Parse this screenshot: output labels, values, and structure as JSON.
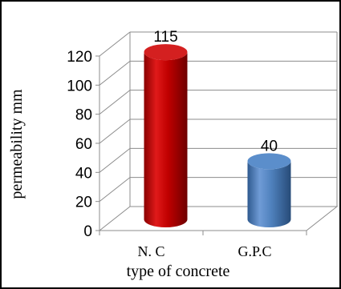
{
  "chart_data": {
    "type": "bar",
    "style": "3d-cylinder",
    "categories": [
      "N. C",
      "G.P.C"
    ],
    "values": [
      115,
      40
    ],
    "data_labels": [
      "115",
      "40"
    ],
    "colors": [
      "#c00000",
      "#4f81bd"
    ],
    "xlabel": "type of concrete",
    "ylabel": "permeability mm",
    "ylim": [
      0,
      120
    ],
    "yticks": [
      0,
      20,
      40,
      60,
      80,
      100,
      120
    ],
    "ytick_labels": [
      "0",
      "20",
      "40",
      "60",
      "80",
      "100",
      "120"
    ],
    "grid": true,
    "legend": "none"
  }
}
